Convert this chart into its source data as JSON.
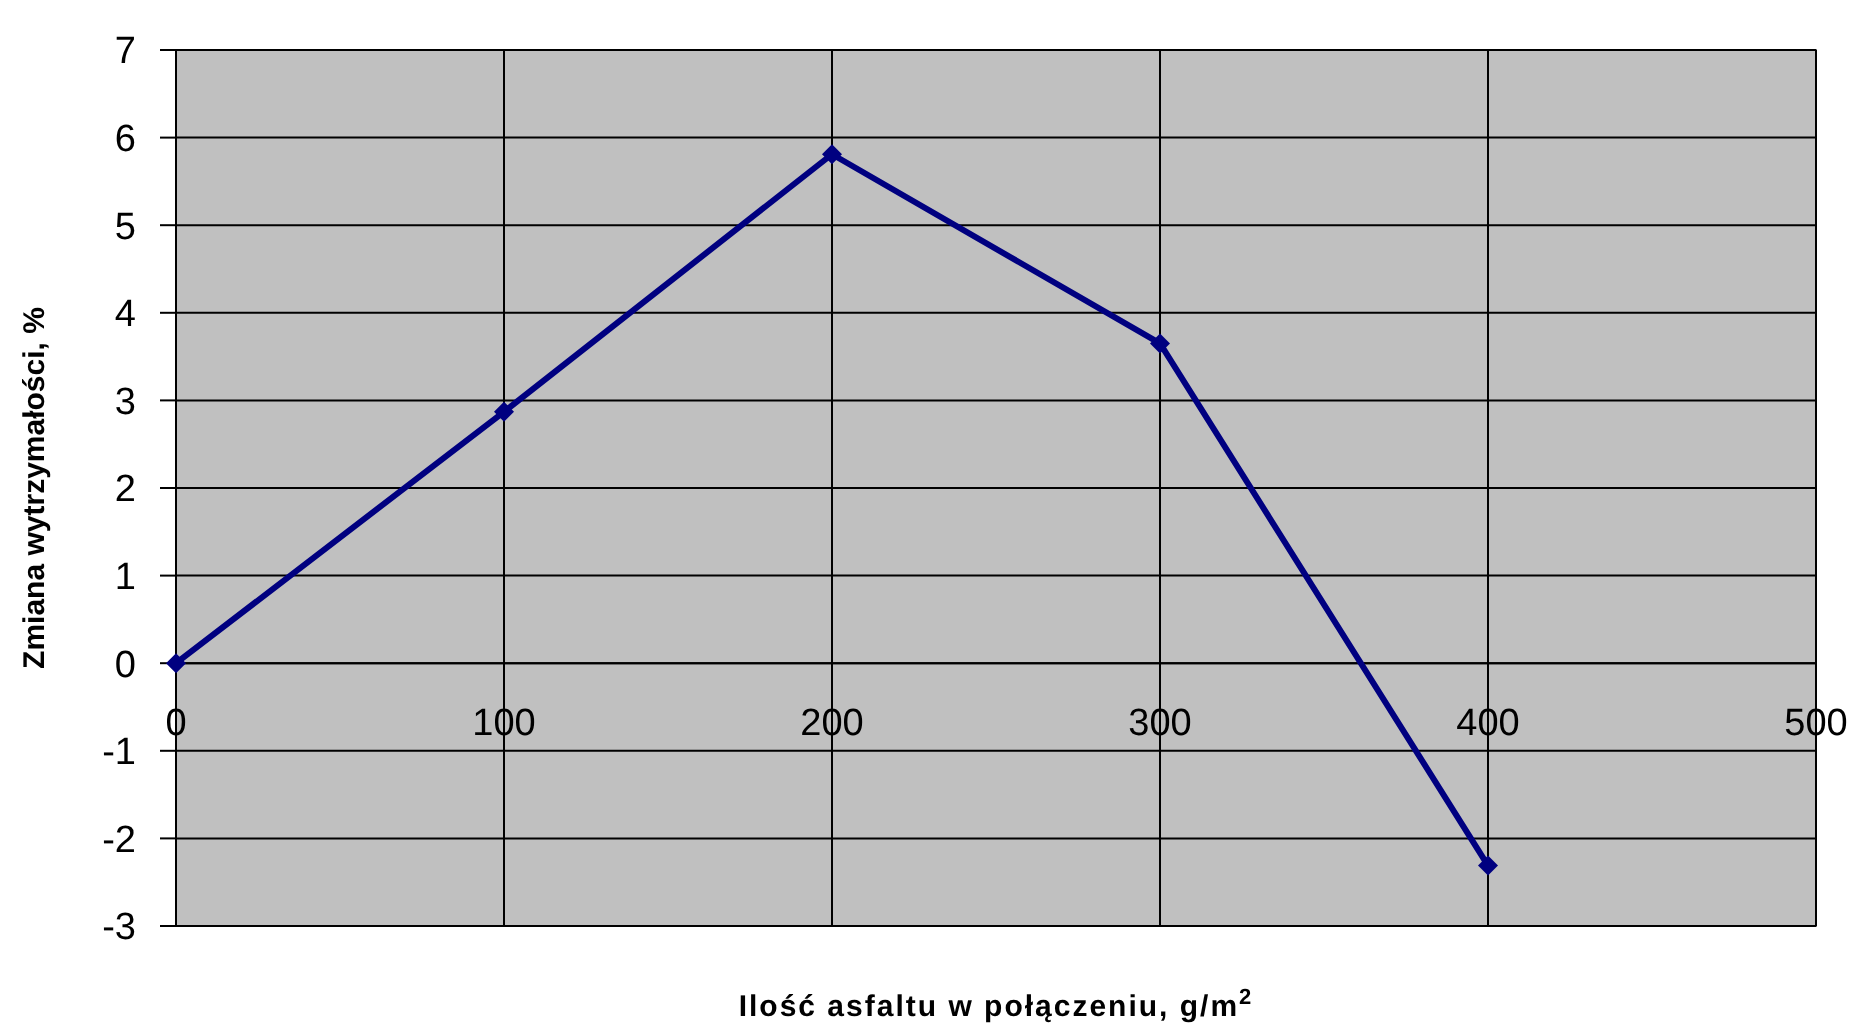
{
  "chart_data": {
    "type": "line",
    "xlabel": "Ilość asfaltu w połączeniu, g/m$^{2}$",
    "ylabel": "Zmiana wytrzymałości, %",
    "x": [
      0,
      100,
      200,
      300,
      400
    ],
    "series": [
      {
        "color": "#000080",
        "values": [
          0,
          2.87,
          5.81,
          3.65,
          -2.31
        ]
      }
    ],
    "xlim": [
      0,
      500
    ],
    "xticks": [
      0,
      100,
      200,
      300,
      400,
      500
    ],
    "ylim": [
      -3,
      7
    ],
    "yticks": [
      -3,
      -2,
      -1,
      0,
      1,
      2,
      3,
      4,
      5,
      6,
      7
    ],
    "grid": true,
    "marker": "diamond",
    "line_style": "solid"
  }
}
